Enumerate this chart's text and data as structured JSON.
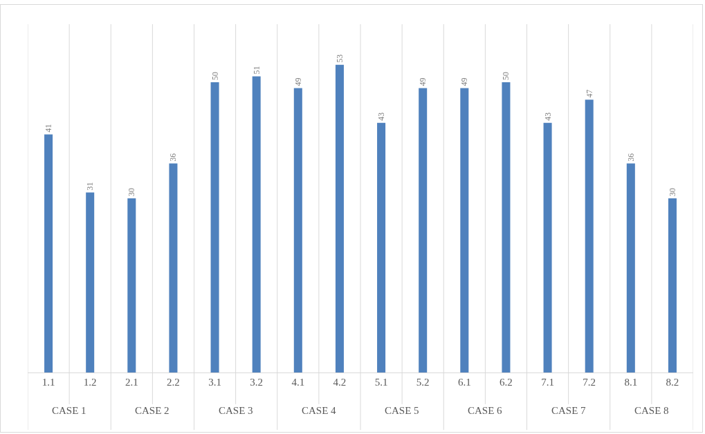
{
  "chart_data": {
    "type": "bar",
    "categories": [
      "1.1",
      "1.2",
      "2.1",
      "2.2",
      "3.1",
      "3.2",
      "4.1",
      "4.2",
      "5.1",
      "5.2",
      "6.1",
      "6.2",
      "7.1",
      "7.2",
      "8.1",
      "8.2"
    ],
    "values": [
      41,
      31,
      30,
      36,
      50,
      51,
      49,
      53,
      43,
      49,
      49,
      50,
      43,
      47,
      36,
      30
    ],
    "color": "#4f81bd",
    "ylim": [
      0,
      60
    ],
    "tick_labels": "x",
    "data_labels": true,
    "grid": "x",
    "annotations": [
      "CASE 1",
      "CASE 2",
      "CASE 3",
      "CASE 4",
      "CASE 5",
      "CASE 6",
      "CASE 7",
      "CASE 8"
    ]
  }
}
